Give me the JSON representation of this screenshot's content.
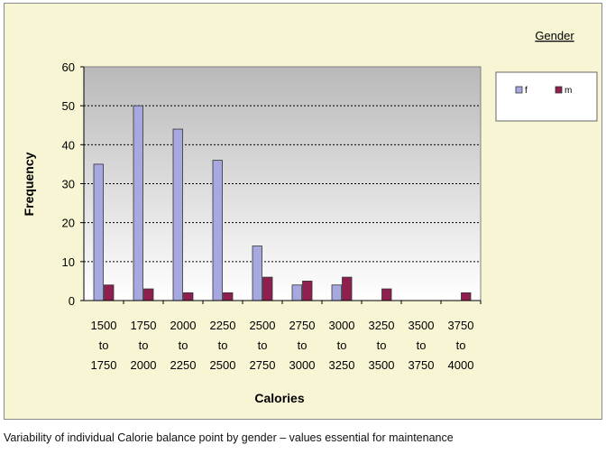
{
  "chart_data": {
    "type": "bar",
    "title": "",
    "xlabel": "Calories",
    "ylabel": "Frequency",
    "ylim": [
      0,
      60
    ],
    "yticks": [
      0,
      10,
      20,
      30,
      40,
      50,
      60
    ],
    "grid": true,
    "legend_title": "Gender",
    "legend_position": "right",
    "categories": [
      [
        "1500",
        "to",
        "1750"
      ],
      [
        "1750",
        "to",
        "2000"
      ],
      [
        "2000",
        "to",
        "2250"
      ],
      [
        "2250",
        "to",
        "2500"
      ],
      [
        "2500",
        "to",
        "2750"
      ],
      [
        "2750",
        "to",
        "3000"
      ],
      [
        "3000",
        "to",
        "3250"
      ],
      [
        "3250",
        "to",
        "3500"
      ],
      [
        "3500",
        "to",
        "3750"
      ],
      [
        "3750",
        "to",
        "4000"
      ]
    ],
    "series": [
      {
        "name": "f",
        "color": "#a8a8e0",
        "values": [
          35,
          50,
          44,
          36,
          14,
          4,
          4,
          0,
          0,
          0
        ]
      },
      {
        "name": "m",
        "color": "#8e1f4f",
        "values": [
          4,
          3,
          2,
          2,
          6,
          5,
          6,
          3,
          0,
          2
        ]
      }
    ]
  },
  "caption": "Variability of individual Calorie balance point by gender – values essential for maintenance"
}
